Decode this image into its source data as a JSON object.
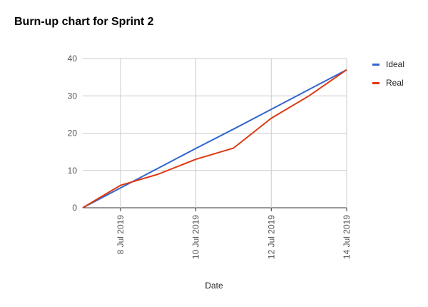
{
  "chart_data": {
    "type": "line",
    "title": "Burn-up chart for Sprint 2",
    "xlabel": "Date",
    "ylabel": "",
    "ylim": [
      0,
      40
    ],
    "yticks": [
      0,
      10,
      20,
      30,
      40
    ],
    "x": [
      "7 Jul 2019",
      "8 Jul 2019",
      "9 Jul 2019",
      "10 Jul 2019",
      "11 Jul 2019",
      "12 Jul 2019",
      "13 Jul 2019",
      "14 Jul 2019"
    ],
    "xtick_labels": [
      "8 Jul 2019",
      "10 Jul 2019",
      "12 Jul 2019",
      "14 Jul 2019"
    ],
    "grid": true,
    "legend_position": "right",
    "series": [
      {
        "name": "Ideal",
        "color": "#3366cc",
        "values": [
          0,
          5.3,
          10.6,
          15.9,
          21.1,
          26.4,
          31.7,
          37
        ]
      },
      {
        "name": "Real",
        "color": "#dc3912",
        "values": [
          0,
          6,
          9,
          13,
          16,
          24,
          30,
          37
        ]
      }
    ]
  }
}
